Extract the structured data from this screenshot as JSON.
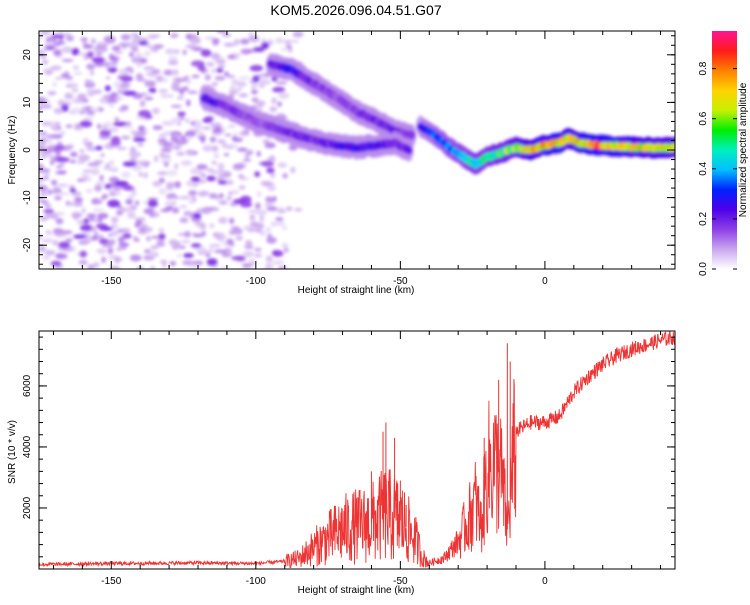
{
  "title": "KOM5.2026.096.04.51.G07",
  "chart_data": [
    {
      "type": "heatmap",
      "name": "spectrogram",
      "xlabel": "Height of straight line (km)",
      "ylabel": "Frequency (Hz)",
      "xlim": [
        -175,
        45
      ],
      "ylim": [
        -25,
        25
      ],
      "xticks": [
        -150,
        -100,
        -50,
        0
      ],
      "xtick_labels": [
        "-150",
        "-100",
        "-50",
        "0"
      ],
      "yticks": [
        20,
        10,
        0,
        -10,
        -20
      ],
      "ytick_labels": [
        "20",
        "10",
        "0",
        "-10",
        "-20"
      ],
      "colorbar": {
        "label": "Normalized spectral amplitude",
        "range": [
          0,
          0.95
        ],
        "ticks": [
          0.0,
          0.2,
          0.4,
          0.6,
          0.8
        ],
        "tick_labels": [
          "0.0",
          "0.2",
          "0.4",
          "0.6",
          "0.8"
        ],
        "colors": [
          "#ffffff",
          "#c9a6ee",
          "#8e3fe6",
          "#4d00e8",
          "#0022ff",
          "#00bfff",
          "#00f0c0",
          "#00ee00",
          "#c8f000",
          "#ffd200",
          "#ff8000",
          "#ff1a1a",
          "#ff1493"
        ]
      },
      "ridge_main": {
        "x": [
          -43,
          -38,
          -33,
          -28,
          -24,
          -20,
          -15,
          -10,
          -5,
          0,
          5,
          8,
          12,
          18,
          25,
          35,
          45
        ],
        "y": [
          5,
          3,
          0.5,
          -1.5,
          -3,
          -1.5,
          -0.5,
          0.5,
          0,
          1,
          1.5,
          2.5,
          1.5,
          1,
          0.8,
          0.5,
          0.5
        ],
        "amplitude": [
          0.3,
          0.35,
          0.4,
          0.45,
          0.5,
          0.5,
          0.55,
          0.6,
          0.7,
          0.75,
          0.78,
          0.7,
          0.75,
          0.8,
          0.75,
          0.7,
          0.7
        ]
      },
      "ridge_upper": {
        "x": [
          -95,
          -88,
          -80,
          -72,
          -65,
          -58,
          -52,
          -46
        ],
        "y": [
          18,
          17,
          14,
          11,
          8,
          6,
          4,
          3
        ],
        "amplitude": [
          0.2,
          0.28,
          0.18,
          0.15,
          0.18,
          0.2,
          0.2,
          0.15
        ]
      },
      "ridge_lower": {
        "x": [
          -118,
          -110,
          -100,
          -90,
          -80,
          -72,
          -65,
          -58,
          -52,
          -47
        ],
        "y": [
          11,
          9,
          6,
          4,
          2,
          1,
          0.5,
          1,
          1.5,
          0
        ],
        "amplitude": [
          0.25,
          0.2,
          0.15,
          0.18,
          0.2,
          0.22,
          0.25,
          0.25,
          0.22,
          0.2
        ]
      },
      "noise_region": {
        "x_range": [
          -175,
          -85
        ],
        "y_range": [
          -25,
          25
        ],
        "amplitude_range": [
          0.03,
          0.12
        ]
      }
    },
    {
      "type": "line",
      "name": "snr",
      "xlabel": "Height of straight line (km)",
      "ylabel": "SNR (10 * v/v)",
      "xlim": [
        -175,
        45
      ],
      "ylim": [
        0,
        7800
      ],
      "xticks": [
        -150,
        -100,
        -50,
        0
      ],
      "xtick_labels": [
        "-150",
        "-100",
        "-50",
        "0"
      ],
      "yticks": [
        2000,
        4000,
        6000
      ],
      "ytick_labels": [
        "2000",
        "4000",
        "6000"
      ],
      "color": "#ee3333",
      "envelope": {
        "x": [
          -175,
          -150,
          -120,
          -100,
          -90,
          -85,
          -80,
          -75,
          -70,
          -65,
          -60,
          -55,
          -50,
          -45,
          -42,
          -40,
          -35,
          -30,
          -26,
          -24,
          -22,
          -20,
          -18,
          -15,
          -13,
          -10,
          -5,
          0,
          5,
          10,
          15,
          20,
          25,
          30,
          40,
          45
        ],
        "y": [
          150,
          180,
          200,
          180,
          250,
          350,
          700,
          1000,
          1300,
          1400,
          1500,
          1800,
          1600,
          1000,
          350,
          200,
          350,
          900,
          1700,
          2200,
          1400,
          3200,
          3500,
          3000,
          1300,
          4500,
          4800,
          4800,
          5000,
          5800,
          6300,
          6700,
          7000,
          7200,
          7500,
          7600
        ]
      },
      "spikes": {
        "x": [
          -60,
          -56,
          -55,
          -52,
          -50,
          -48,
          -21,
          -16,
          -13,
          -12
        ],
        "y": [
          3200,
          4500,
          4800,
          4300,
          2900,
          2100,
          4300,
          6200,
          7400,
          6800
        ]
      }
    }
  ]
}
